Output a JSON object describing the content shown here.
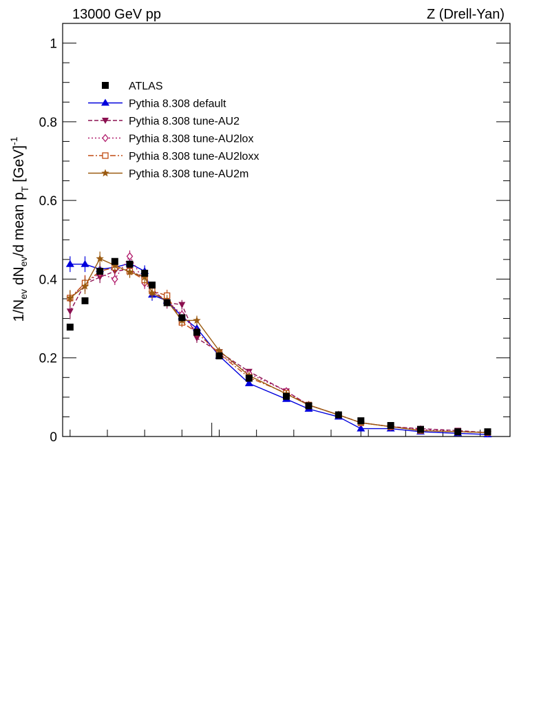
{
  "chart_data": {
    "type": "line",
    "title_left": "13000 GeV pp",
    "title_right": "Z (Drell-Yan)",
    "ylabel": {
      "pre": "1/N",
      "sub1": "ev",
      "mid1": " dN",
      "sub2": "ev",
      "mid2": "/d mean p",
      "sub3": "T",
      "mid3": " [GeV]",
      "sup": "-1"
    },
    "xlim": [
      0,
      15
    ],
    "ylim": [
      0,
      1.05
    ],
    "yticks": [
      {
        "v": 0,
        "label": "0"
      },
      {
        "v": 0.2,
        "label": "0.2"
      },
      {
        "v": 0.4,
        "label": "0.4"
      },
      {
        "v": 0.6,
        "label": "0.6"
      },
      {
        "v": 0.8,
        "label": "0.8"
      },
      {
        "v": 1.0,
        "label": "1"
      }
    ],
    "xticks_major": [
      0,
      5,
      10,
      15
    ],
    "legend_position": "top-left",
    "series": [
      {
        "name": "ATLAS",
        "color": "#000000",
        "marker": "square-filled",
        "line": "none",
        "x": [
          0.25,
          0.75,
          1.25,
          1.75,
          2.25,
          2.75,
          3.0,
          3.5,
          4.0,
          4.5,
          5.25,
          6.25,
          7.5,
          8.25,
          9.25,
          10.0,
          11.0,
          12.0,
          13.25,
          14.25
        ],
        "y": [
          0.278,
          0.345,
          0.42,
          0.445,
          0.438,
          0.415,
          0.385,
          0.34,
          0.302,
          0.265,
          0.205,
          0.148,
          0.102,
          0.078,
          0.055,
          0.04,
          0.028,
          0.018,
          0.012,
          0.012
        ],
        "yerr": [
          0.005,
          0.005,
          0.005,
          0.005,
          0.005,
          0.005,
          0.005,
          0.005,
          0.005,
          0.005,
          0.004,
          0.004,
          0.003,
          0.003,
          0.002,
          0.002,
          0.002,
          0.002,
          0.002,
          0.002
        ]
      },
      {
        "name": "Pythia 8.308 default",
        "color": "#0000dd",
        "marker": "triangle-up",
        "line": "solid",
        "x": [
          0.25,
          0.75,
          1.25,
          1.75,
          2.25,
          2.75,
          3.0,
          3.5,
          4.0,
          4.5,
          5.25,
          6.25,
          7.5,
          8.25,
          9.25,
          10.0,
          11.0,
          12.0,
          13.25,
          14.25
        ],
        "y": [
          0.438,
          0.438,
          0.425,
          0.43,
          0.44,
          0.42,
          0.36,
          0.345,
          0.305,
          0.275,
          0.205,
          0.135,
          0.095,
          0.07,
          0.05,
          0.02,
          0.02,
          0.012,
          0.008,
          0.005
        ],
        "yerr": [
          0.02,
          0.02,
          0.015,
          0.015,
          0.015,
          0.015,
          0.015,
          0.015,
          0.012,
          0.012,
          0.008,
          0.006,
          0.004,
          0.004,
          0.003,
          0.002,
          0.002,
          0.002,
          0.002,
          0.002
        ]
      },
      {
        "name": "Pythia 8.308 tune-AU2",
        "color": "#8b1050",
        "marker": "triangle-down",
        "line": "dashed",
        "x": [
          0.25,
          0.75,
          1.25,
          1.75,
          2.25,
          2.75,
          3.0,
          3.5,
          4.0,
          4.5,
          5.25,
          6.25,
          7.5,
          8.25,
          9.25,
          10.0,
          11.0,
          12.0,
          13.25,
          14.25
        ],
        "y": [
          0.318,
          0.388,
          0.405,
          0.42,
          0.425,
          0.4,
          0.375,
          0.34,
          0.335,
          0.25,
          0.215,
          0.165,
          0.115,
          0.08,
          0.055,
          0.035,
          0.025,
          0.02,
          0.015,
          0.01
        ],
        "yerr": [
          0.02,
          0.02,
          0.015,
          0.015,
          0.015,
          0.015,
          0.015,
          0.015,
          0.012,
          0.012,
          0.008,
          0.006,
          0.004,
          0.004,
          0.003,
          0.002,
          0.002,
          0.002,
          0.002,
          0.002
        ]
      },
      {
        "name": "Pythia 8.308 tune-AU2lox",
        "color": "#b01a6a",
        "marker": "diamond-open",
        "line": "dotted",
        "x": [
          0.25,
          0.75,
          1.25,
          1.75,
          2.25,
          2.75,
          3.0,
          3.5,
          4.0,
          4.5,
          5.25,
          6.25,
          7.5,
          8.25,
          9.25,
          10.0,
          11.0,
          12.0,
          13.25,
          14.25
        ],
        "y": [
          0.35,
          0.39,
          0.415,
          0.4,
          0.458,
          0.39,
          0.37,
          0.345,
          0.31,
          0.265,
          0.21,
          0.16,
          0.115,
          0.08,
          0.055,
          0.035,
          0.025,
          0.018,
          0.012,
          0.01
        ],
        "yerr": [
          0.02,
          0.02,
          0.015,
          0.015,
          0.015,
          0.015,
          0.015,
          0.015,
          0.012,
          0.012,
          0.008,
          0.006,
          0.004,
          0.004,
          0.003,
          0.002,
          0.002,
          0.002,
          0.002,
          0.002
        ]
      },
      {
        "name": "Pythia 8.308 tune-AU2loxx",
        "color": "#c04a10",
        "marker": "square-open",
        "line": "dashdot",
        "x": [
          0.25,
          0.75,
          1.25,
          1.75,
          2.25,
          2.75,
          3.0,
          3.5,
          4.0,
          4.5,
          5.25,
          6.25,
          7.5,
          8.25,
          9.25,
          10.0,
          11.0,
          12.0,
          13.25,
          14.25
        ],
        "y": [
          0.352,
          0.39,
          0.42,
          0.43,
          0.42,
          0.398,
          0.37,
          0.358,
          0.29,
          0.265,
          0.21,
          0.15,
          0.11,
          0.08,
          0.055,
          0.035,
          0.025,
          0.015,
          0.012,
          0.01
        ],
        "yerr": [
          0.02,
          0.02,
          0.015,
          0.015,
          0.015,
          0.015,
          0.015,
          0.015,
          0.012,
          0.012,
          0.008,
          0.006,
          0.004,
          0.004,
          0.003,
          0.002,
          0.002,
          0.002,
          0.002,
          0.002
        ]
      },
      {
        "name": "Pythia 8.308 tune-AU2m",
        "color": "#9a5a10",
        "marker": "star",
        "line": "solid",
        "x": [
          0.25,
          0.75,
          1.25,
          1.75,
          2.25,
          2.75,
          3.0,
          3.5,
          4.0,
          4.5,
          5.25,
          6.25,
          7.5,
          8.25,
          9.25,
          10.0,
          11.0,
          12.0,
          13.25,
          14.25
        ],
        "y": [
          0.352,
          0.382,
          0.452,
          0.435,
          0.418,
          0.405,
          0.365,
          0.345,
          0.295,
          0.295,
          0.218,
          0.155,
          0.108,
          0.08,
          0.055,
          0.035,
          0.025,
          0.015,
          0.012,
          0.01
        ],
        "yerr": [
          0.02,
          0.02,
          0.018,
          0.015,
          0.015,
          0.015,
          0.015,
          0.015,
          0.012,
          0.012,
          0.008,
          0.006,
          0.004,
          0.004,
          0.003,
          0.002,
          0.002,
          0.002,
          0.002,
          0.002
        ]
      }
    ]
  }
}
